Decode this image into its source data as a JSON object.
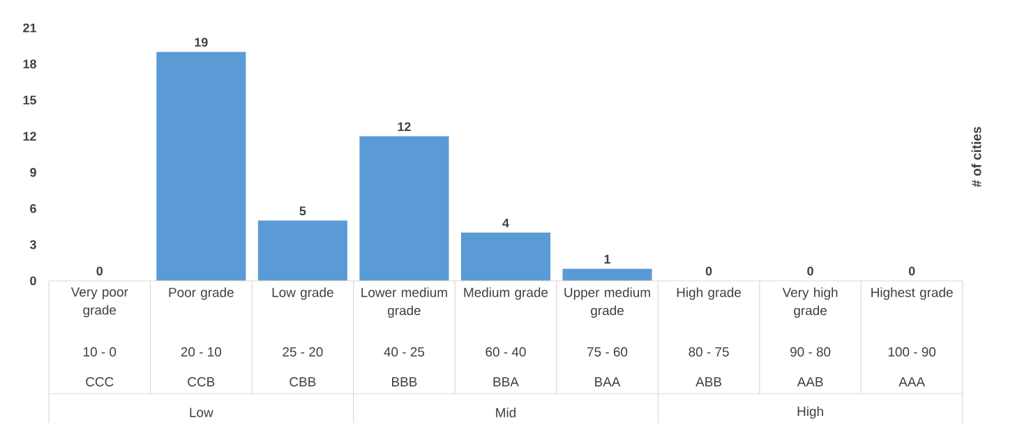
{
  "chart_data": {
    "type": "bar",
    "categories": [
      "Very poor grade",
      "Poor grade",
      "Low grade",
      "Lower medium grade",
      "Medium grade",
      "Upper medium grade",
      "High grade",
      "Very high grade",
      "Highest grade"
    ],
    "values": [
      0,
      19,
      5,
      12,
      4,
      1,
      0,
      0,
      0
    ],
    "color": "#5b9bd5",
    "ylabel": "# of cities",
    "ylim": [
      0,
      21
    ],
    "yticks": [
      0,
      3,
      6,
      9,
      12,
      15,
      18,
      21
    ],
    "data_labels": true,
    "annotations": [
      "10 - 0",
      "20 - 10",
      "25 - 20",
      "40 - 25",
      "60 - 40",
      "75 - 60",
      "80 - 75",
      "90 - 80",
      "100 - 90",
      "CCC",
      "CCB",
      "CBB",
      "BBB",
      "BBA",
      "BAA",
      "ABB",
      "AAB",
      "AAA",
      "Low",
      "Mid",
      "High"
    ]
  }
}
